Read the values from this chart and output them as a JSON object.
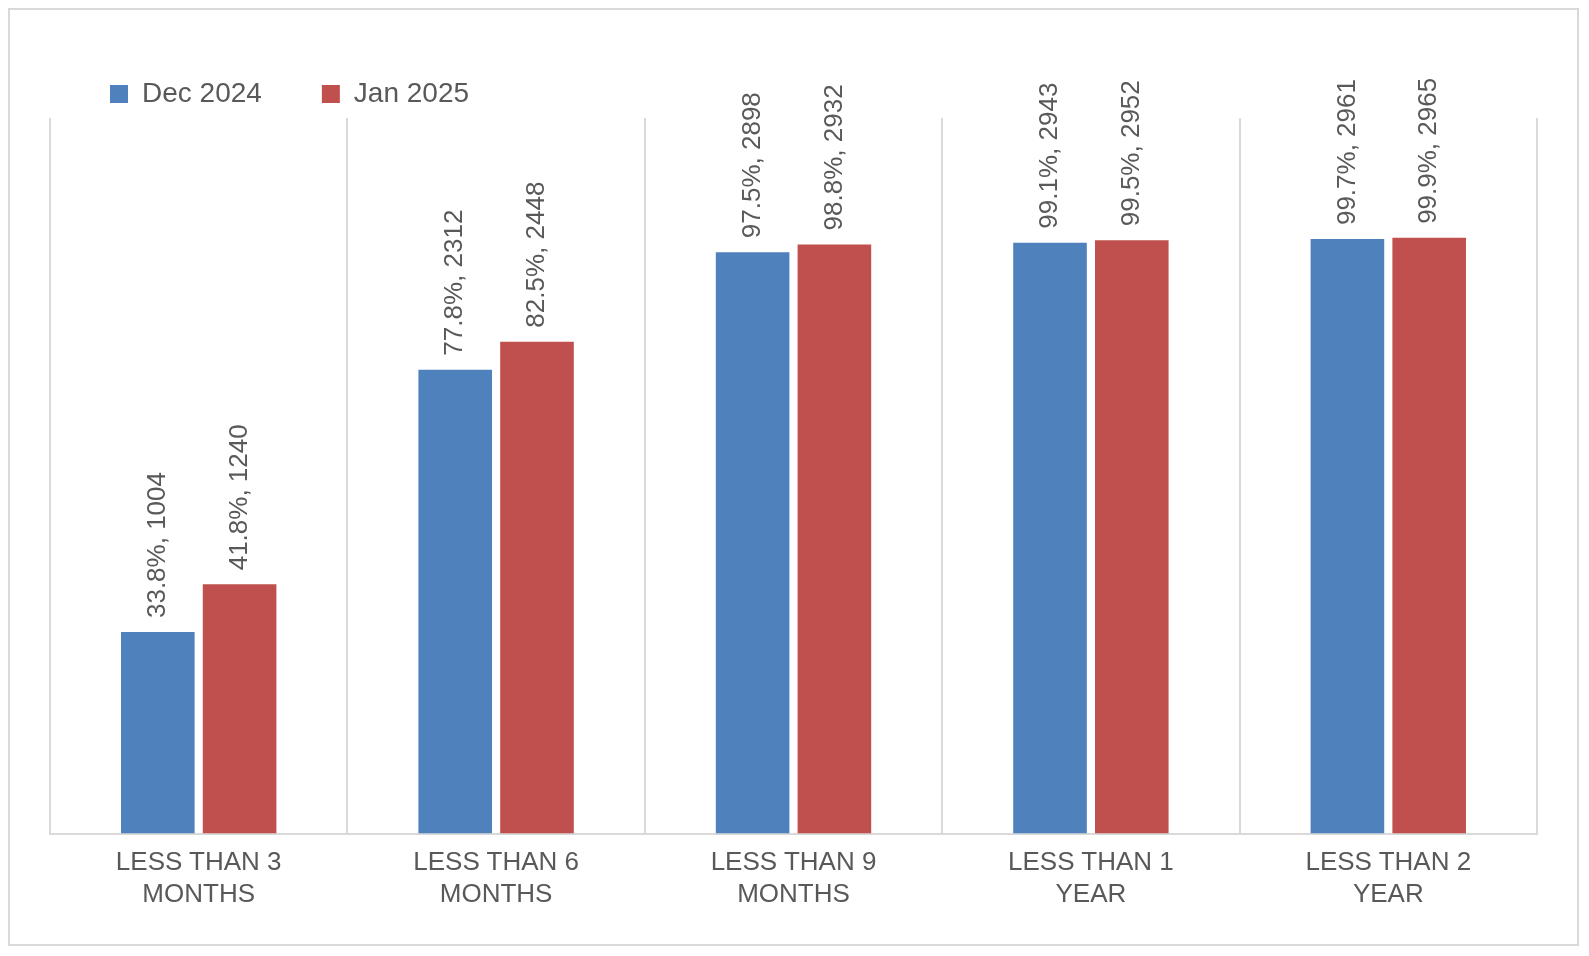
{
  "chart_data": {
    "type": "bar",
    "categories": [
      "LESS THAN 3 MONTHS",
      "LESS THAN 6 MONTHS",
      "LESS THAN 9 MONTHS",
      "LESS THAN 1 YEAR",
      "LESS THAN 2 YEAR"
    ],
    "series": [
      {
        "name": "Dec 2024",
        "color": "#4f81bd",
        "values": [
          33.8,
          77.8,
          97.5,
          99.1,
          99.7
        ],
        "value_labels": [
          "33.8%, 1004",
          "77.8%, 2312",
          "97.5%, 2898",
          "99.1%, 2943",
          "99.7%, 2961"
        ]
      },
      {
        "name": "Jan 2025",
        "color": "#c0504d",
        "values": [
          41.8,
          82.5,
          98.8,
          99.5,
          99.9
        ],
        "value_labels": [
          "41.8%, 1240",
          "82.5%, 2448",
          "98.8%, 2932",
          "99.5%, 2952",
          "99.9%, 2965"
        ]
      }
    ],
    "ylim": [
      0,
      120
    ],
    "grid": "x",
    "legend": "top left"
  }
}
